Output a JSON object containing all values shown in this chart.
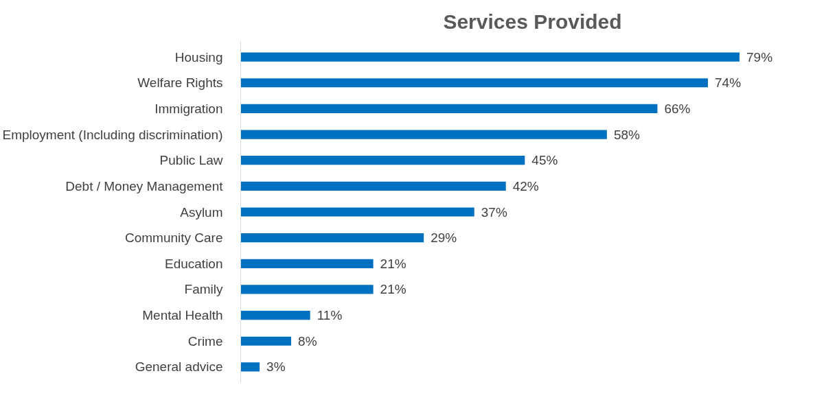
{
  "chart_data": {
    "type": "bar",
    "orientation": "horizontal",
    "title": "Services Provided",
    "categories": [
      "Housing",
      "Welfare Rights",
      "Immigration",
      "Employment (Including discrimination)",
      "Public Law",
      "Debt / Money Management",
      "Asylum",
      "Community Care",
      "Education",
      "Family",
      "Mental Health",
      "Crime",
      "General advice"
    ],
    "values": [
      79,
      74,
      66,
      58,
      45,
      42,
      37,
      29,
      21,
      21,
      11,
      8,
      3
    ],
    "value_labels": [
      "79%",
      "74%",
      "66%",
      "58%",
      "45%",
      "42%",
      "37%",
      "29%",
      "21%",
      "21%",
      "11%",
      "8%",
      "3%"
    ],
    "color": "#0070c0"
  }
}
